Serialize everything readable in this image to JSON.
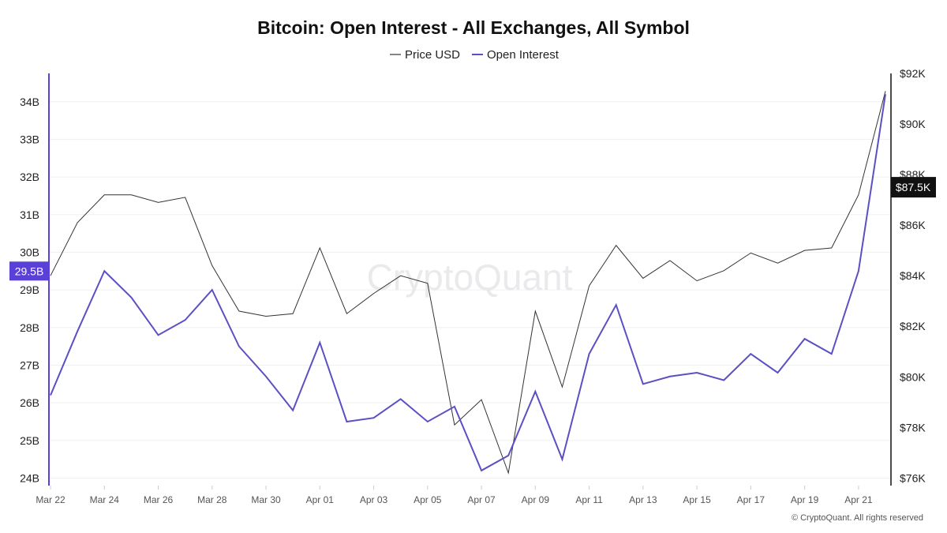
{
  "chart_data": {
    "type": "line",
    "title": "Bitcoin: Open Interest - All Exchanges, All Symbol",
    "legend_position": "top-center",
    "grid": true,
    "watermark": "CryptoQuant",
    "copyright": "© CryptoQuant. All rights reserved",
    "x": [
      "Mar 22",
      "Mar 23",
      "Mar 24",
      "Mar 25",
      "Mar 26",
      "Mar 27",
      "Mar 28",
      "Mar 29",
      "Mar 30",
      "Mar 31",
      "Apr 01",
      "Apr 02",
      "Apr 03",
      "Apr 04",
      "Apr 05",
      "Apr 06",
      "Apr 07",
      "Apr 08",
      "Apr 09",
      "Apr 10",
      "Apr 11",
      "Apr 12",
      "Apr 13",
      "Apr 14",
      "Apr 15",
      "Apr 16",
      "Apr 17",
      "Apr 18",
      "Apr 19",
      "Apr 20",
      "Apr 21",
      "Apr 22"
    ],
    "x_tick_labels": [
      "Mar 22",
      "Mar 24",
      "Mar 26",
      "Mar 28",
      "Mar 30",
      "Apr 01",
      "Apr 03",
      "Apr 05",
      "Apr 07",
      "Apr 09",
      "Apr 11",
      "Apr 13",
      "Apr 15",
      "Apr 17",
      "Apr 19",
      "Apr 21"
    ],
    "left_axis": {
      "ticks": [
        "24B",
        "25B",
        "26B",
        "27B",
        "28B",
        "29B",
        "30B",
        "31B",
        "32B",
        "33B",
        "34B"
      ],
      "range": [
        23.8,
        34.75
      ]
    },
    "right_axis": {
      "ticks": [
        "$76K",
        "$78K",
        "$80K",
        "$82K",
        "$84K",
        "$86K",
        "$88K",
        "$90K",
        "$92K"
      ],
      "range": [
        75.7,
        92.0
      ]
    },
    "series": [
      {
        "name": "Price USD",
        "axis": "right",
        "color": "#333333",
        "unit": "K USD",
        "values": [
          84.0,
          86.1,
          87.2,
          87.2,
          86.9,
          87.1,
          84.4,
          82.6,
          82.4,
          82.5,
          85.1,
          82.5,
          83.3,
          84.0,
          83.7,
          78.1,
          79.1,
          76.2,
          82.6,
          79.6,
          83.6,
          85.2,
          83.9,
          84.6,
          83.8,
          84.2,
          84.9,
          84.5,
          85.0,
          85.1,
          87.2,
          91.3
        ]
      },
      {
        "name": "Open Interest",
        "axis": "left",
        "color": "#5b4fc4",
        "unit": "B USD",
        "values": [
          26.2,
          27.9,
          29.5,
          28.8,
          27.8,
          28.2,
          29.0,
          27.5,
          26.7,
          25.8,
          27.6,
          25.5,
          25.6,
          26.1,
          25.5,
          25.9,
          24.2,
          24.6,
          26.3,
          24.5,
          27.3,
          28.6,
          26.5,
          26.7,
          26.8,
          26.6,
          27.3,
          26.8,
          27.7,
          27.3,
          29.5,
          34.2
        ]
      }
    ],
    "left_marker": {
      "value": 29.5,
      "label": "29.5B",
      "color": "#5b3fd9"
    },
    "right_marker": {
      "value": 87.5,
      "label": "$87.5K",
      "color": "#111111"
    }
  }
}
